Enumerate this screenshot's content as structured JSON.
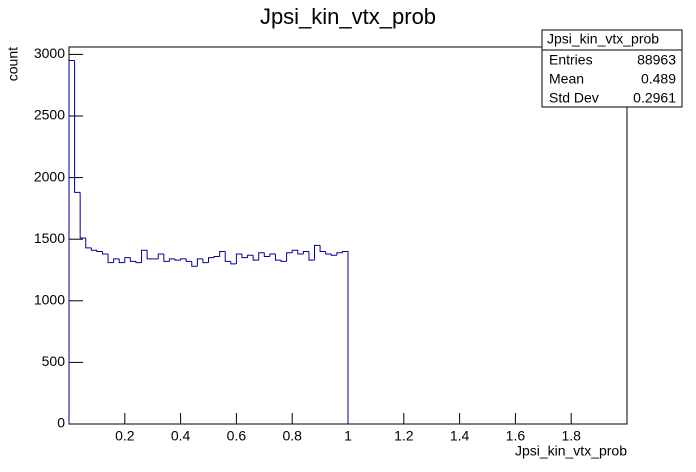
{
  "chart_data": {
    "type": "histogram",
    "title": "Jpsi_kin_vtx_prob",
    "x_label": "Jpsi_kin_vtx_prob",
    "y_label": "count",
    "color": "#000099",
    "bins": [
      0,
      0.02,
      0.04,
      0.06,
      0.08,
      0.1,
      0.12,
      0.14,
      0.16,
      0.18,
      0.2,
      0.22,
      0.24,
      0.26,
      0.28,
      0.3,
      0.32,
      0.34,
      0.36,
      0.38,
      0.4,
      0.42,
      0.44,
      0.46,
      0.48,
      0.5,
      0.52,
      0.54,
      0.56,
      0.58,
      0.6,
      0.62,
      0.64,
      0.66,
      0.68,
      0.7,
      0.72,
      0.74,
      0.76,
      0.78,
      0.8,
      0.82,
      0.84,
      0.86,
      0.88,
      0.9,
      0.92,
      0.94,
      0.96,
      0.98,
      1
    ],
    "counts": [
      2950,
      1880,
      1510,
      1430,
      1410,
      1400,
      1380,
      1310,
      1340,
      1310,
      1350,
      1320,
      1310,
      1410,
      1340,
      1340,
      1380,
      1320,
      1340,
      1330,
      1340,
      1320,
      1280,
      1340,
      1310,
      1350,
      1360,
      1400,
      1320,
      1300,
      1380,
      1350,
      1370,
      1330,
      1390,
      1360,
      1380,
      1330,
      1320,
      1390,
      1410,
      1380,
      1400,
      1330,
      1450,
      1400,
      1380,
      1370,
      1390,
      1400
    ],
    "xlim": [
      0,
      2
    ],
    "xticks": [
      0.2,
      0.4,
      0.6,
      0.8,
      1,
      1.2,
      1.4,
      1.6,
      1.8
    ],
    "ylim": [
      0,
      3060
    ],
    "yticks": [
      0,
      500,
      1000,
      1500,
      2000,
      2500,
      3000
    ],
    "stats": {
      "title": "Jpsi_kin_vtx_prob",
      "rows": [
        [
          "Entries",
          88963
        ],
        [
          "Mean",
          0.489
        ],
        [
          "Std Dev",
          0.2961
        ]
      ]
    }
  }
}
